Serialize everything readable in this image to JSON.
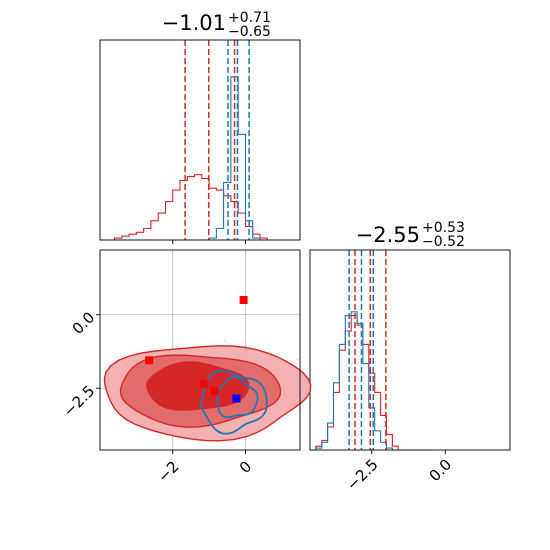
{
  "colors": {
    "red": "#d62728",
    "blue": "#1f77b4",
    "red_fill_outer": "#f3b1b1",
    "red_fill_mid": "#e26b6b",
    "red_fill_inner": "#d62728",
    "marker_red": "#ff0000",
    "marker_blue": "#0000ff",
    "grid": "#b0b0b0",
    "scatter": "#c8d6ea"
  },
  "chart_data": [
    {
      "panel": "marginal-x",
      "type": "line",
      "title": {
        "main": "−1.01",
        "sup": "+0.71",
        "sub": "−0.65"
      },
      "x": [
        -3.9,
        -3.7,
        -3.5,
        -3.3,
        -3.1,
        -2.9,
        -2.7,
        -2.5,
        -2.3,
        -2.1,
        -1.9,
        -1.7,
        -1.5,
        -1.3,
        -1.1,
        -0.9,
        -0.7,
        -0.5,
        -0.3,
        -0.1,
        0.1,
        0.3,
        0.5,
        0.7,
        0.9,
        1.1,
        1.3
      ],
      "xlim": [
        -4.0,
        1.5
      ],
      "ylim": [
        0,
        1
      ],
      "series": [
        {
          "color": "red",
          "values": [
            0.0,
            0.0,
            0.01,
            0.02,
            0.03,
            0.04,
            0.06,
            0.1,
            0.14,
            0.2,
            0.26,
            0.31,
            0.33,
            0.34,
            0.32,
            0.27,
            0.26,
            0.23,
            0.2,
            0.14,
            0.07,
            0.03,
            0.01,
            0.0,
            0.0,
            0.0,
            0.0
          ]
        },
        {
          "color": "blue",
          "values": [
            0,
            0,
            0,
            0,
            0,
            0,
            0,
            0,
            0,
            0,
            0,
            0,
            0,
            0,
            0,
            0.01,
            0.06,
            0.3,
            0.85,
            0.55,
            0.1,
            0.01,
            0,
            0,
            0,
            0,
            0
          ]
        }
      ],
      "quantile_lines": [
        {
          "color": "red",
          "values": [
            -1.66,
            -1.01,
            -0.3
          ]
        },
        {
          "color": "blue",
          "values": [
            -0.48,
            -0.22,
            0.1
          ]
        }
      ]
    },
    {
      "panel": "marginal-y",
      "type": "line",
      "title": {
        "main": "−2.55",
        "sup": "+0.53",
        "sub": "−0.52"
      },
      "x": [
        -4.5,
        -4.3,
        -4.1,
        -3.9,
        -3.7,
        -3.5,
        -3.3,
        -3.1,
        -2.9,
        -2.7,
        -2.5,
        -2.3,
        -2.1,
        -1.9,
        -1.7,
        -1.5,
        -1.3,
        -1.1,
        -0.9,
        -0.7,
        -0.5
      ],
      "xlim": [
        -4.6,
        2.2
      ],
      "ylim": [
        0,
        1
      ],
      "x_ticks": [
        "−2.5",
        "0.0"
      ],
      "x_tick_values": [
        -2.5,
        0.0
      ],
      "series": [
        {
          "color": "red",
          "values": [
            0.0,
            0.02,
            0.05,
            0.12,
            0.3,
            0.52,
            0.62,
            0.7,
            0.65,
            0.55,
            0.4,
            0.3,
            0.18,
            0.08,
            0.02,
            0.0,
            0.0,
            0.0,
            0.0,
            0.0,
            0.0
          ]
        },
        {
          "color": "blue",
          "values": [
            0.0,
            0.01,
            0.04,
            0.14,
            0.35,
            0.55,
            0.7,
            0.72,
            0.66,
            0.45,
            0.22,
            0.1,
            0.04,
            0.01,
            0.0,
            0.0,
            0.0,
            0.0,
            0.0,
            0.0,
            0.0
          ]
        }
      ],
      "quantile_lines": [
        {
          "color": "red",
          "values": [
            -3.07,
            -2.55,
            -2.02
          ]
        },
        {
          "color": "blue",
          "values": [
            -3.27,
            -2.85,
            -2.45
          ]
        }
      ]
    },
    {
      "panel": "joint",
      "type": "scatter",
      "xlim": [
        -4.0,
        1.5
      ],
      "ylim": [
        -4.6,
        2.2
      ],
      "x_ticks": [
        "−2",
        "0"
      ],
      "x_tick_values": [
        -2,
        0
      ],
      "y_ticks": [
        "−2.5",
        "0.0"
      ],
      "y_tick_values": [
        -2.5,
        0.0
      ],
      "grid": true,
      "red_contours": [
        {
          "level": "outer",
          "cx": -1.1,
          "cy": -2.6,
          "rx": 2.8,
          "ry": 1.6
        },
        {
          "level": "mid",
          "cx": -1.3,
          "cy": -2.55,
          "rx": 2.2,
          "ry": 1.2
        },
        {
          "level": "inner",
          "cx": -1.35,
          "cy": -2.45,
          "rx": 1.4,
          "ry": 0.8
        }
      ],
      "blue_contours": [
        {
          "level": "outer",
          "cx": -0.35,
          "cy": -2.95,
          "rx": 0.9,
          "ry": 1.0
        },
        {
          "level": "inner",
          "cx": -0.25,
          "cy": -2.85,
          "rx": 0.55,
          "ry": 0.65
        }
      ],
      "markers": [
        {
          "color": "marker_red",
          "x": -0.05,
          "y": 0.5
        },
        {
          "color": "marker_red",
          "x": -2.65,
          "y": -1.55
        },
        {
          "color": "marker_red",
          "x": -1.15,
          "y": -2.35
        },
        {
          "color": "marker_red",
          "x": -0.85,
          "y": -2.6
        },
        {
          "color": "marker_blue",
          "x": -0.25,
          "y": -2.85
        }
      ]
    }
  ]
}
